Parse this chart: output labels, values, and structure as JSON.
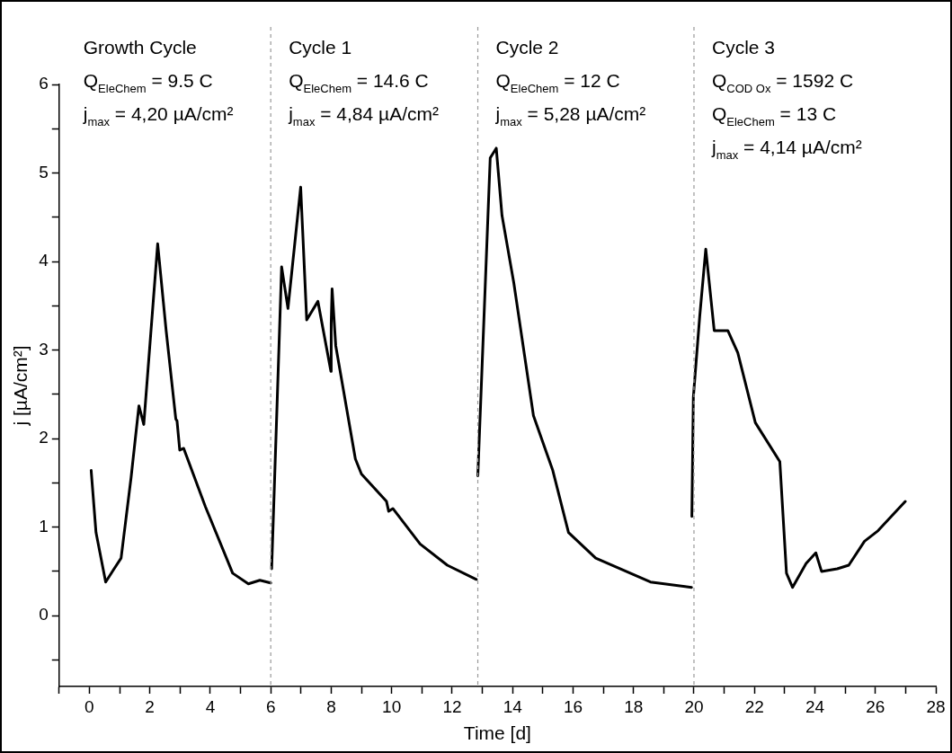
{
  "chart_data": {
    "type": "line",
    "xlabel": "Time [d]",
    "ylabel": "j [µA/cm²]",
    "xlim": [
      -1,
      28
    ],
    "ylim": [
      -0.8,
      6
    ],
    "xticks": [
      {
        "value": -1,
        "label": null
      },
      0,
      {
        "value": 1,
        "label": null
      },
      2,
      {
        "value": 3,
        "label": null
      },
      4,
      {
        "value": 5,
        "label": null
      },
      6,
      {
        "value": 7,
        "label": null
      },
      8,
      {
        "value": 9,
        "label": null
      },
      10,
      {
        "value": 11,
        "label": null
      },
      12,
      {
        "value": 13,
        "label": null
      },
      14,
      {
        "value": 15,
        "label": null
      },
      16,
      {
        "value": 17,
        "label": null
      },
      18,
      {
        "value": 19,
        "label": null
      },
      20,
      {
        "value": 21,
        "label": null
      },
      22,
      {
        "value": 23,
        "label": null
      },
      24,
      {
        "value": 25,
        "label": null
      },
      26,
      {
        "value": 27,
        "label": null
      },
      28
    ],
    "yticks": [
      {
        "value": -0.5,
        "label": null
      },
      0,
      {
        "value": 0.5,
        "label": null
      },
      1,
      {
        "value": 1.5,
        "label": null
      },
      2,
      {
        "value": 2.5,
        "label": null
      },
      3,
      {
        "value": 3.5,
        "label": null
      },
      4,
      {
        "value": 4.5,
        "label": null
      },
      5,
      {
        "value": 5.5,
        "label": null
      },
      6
    ],
    "series": [
      {
        "color": "#000000",
        "x": [
          0.06,
          0.22,
          0.54,
          0.8,
          1.05,
          1.38,
          1.64,
          1.8,
          2.26,
          2.54,
          2.86,
          2.9,
          2.99,
          3.12,
          3.84,
          4.74,
          5.26,
          5.64,
          6.0
        ],
        "values": [
          1.64,
          0.94,
          0.38,
          0.52,
          0.65,
          1.56,
          2.37,
          2.16,
          4.2,
          3.22,
          2.22,
          2.2,
          1.87,
          1.89,
          1.23,
          0.48,
          0.36,
          0.4,
          0.37
        ]
      },
      {
        "color": "#000000",
        "x": [
          6.03,
          6.36,
          6.57,
          6.99,
          7.19,
          7.56,
          7.99,
          8.0,
          8.03,
          8.15,
          8.8,
          9.0,
          9.83,
          9.9,
          10.04,
          10.94,
          11.84,
          12.8
        ],
        "values": [
          0.53,
          3.94,
          3.47,
          4.84,
          3.34,
          3.55,
          2.76,
          3.3,
          3.69,
          3.05,
          1.77,
          1.6,
          1.29,
          1.18,
          1.21,
          0.81,
          0.57,
          0.41
        ]
      },
      {
        "color": "#000000",
        "x": [
          12.85,
          13.26,
          13.46,
          13.65,
          14.04,
          14.69,
          15.33,
          15.85,
          16.75,
          18.56,
          19.92
        ],
        "values": [
          1.58,
          5.17,
          5.28,
          4.52,
          3.76,
          2.26,
          1.64,
          0.94,
          0.65,
          0.38,
          0.32
        ]
      },
      {
        "color": "#000000",
        "x": [
          19.93,
          19.98,
          20.19,
          20.39,
          20.67,
          21.12,
          21.45,
          22.03,
          22.84,
          23.06,
          23.26,
          23.71,
          24.03,
          24.22,
          24.74,
          25.12,
          25.64,
          26.09,
          26.99
        ],
        "values": [
          1.12,
          2.47,
          3.38,
          4.14,
          3.22,
          3.22,
          2.97,
          2.18,
          1.74,
          0.48,
          0.32,
          0.59,
          0.71,
          0.5,
          0.53,
          0.57,
          0.84,
          0.96,
          1.29
        ]
      }
    ],
    "ref_lines": [
      {
        "axis": "x",
        "value": 6,
        "color": "#999999",
        "line_style": "dashed"
      },
      {
        "axis": "x",
        "value": 12.85,
        "color": "#999999",
        "line_style": "dashed"
      },
      {
        "axis": "x",
        "value": 20,
        "color": "#999999",
        "line_style": "dashed"
      }
    ],
    "annotations": [
      "Growth Cycle\nQ$_{EleChem}$ = 9.5 C\nj$_{max}$ = 4,20 µA/cm²",
      "Cycle 1\nQ$_{EleChem}$ = 14.6 C\nj$_{max}$ = 4,84 µA/cm²",
      "Cycle 2\nQ$_{EleChem}$ = 12 C\nj$_{max}$ = 5,28 µA/cm²",
      "Cycle 3\nQ$_{COD Ox}$ = 1592 C\nQ$_{EleChem}$ = 13 C\nj$_{max}$ = 4,14 µA/cm²"
    ],
    "grid": false,
    "legend": false,
    "marker": "none",
    "line_style": "solid"
  }
}
